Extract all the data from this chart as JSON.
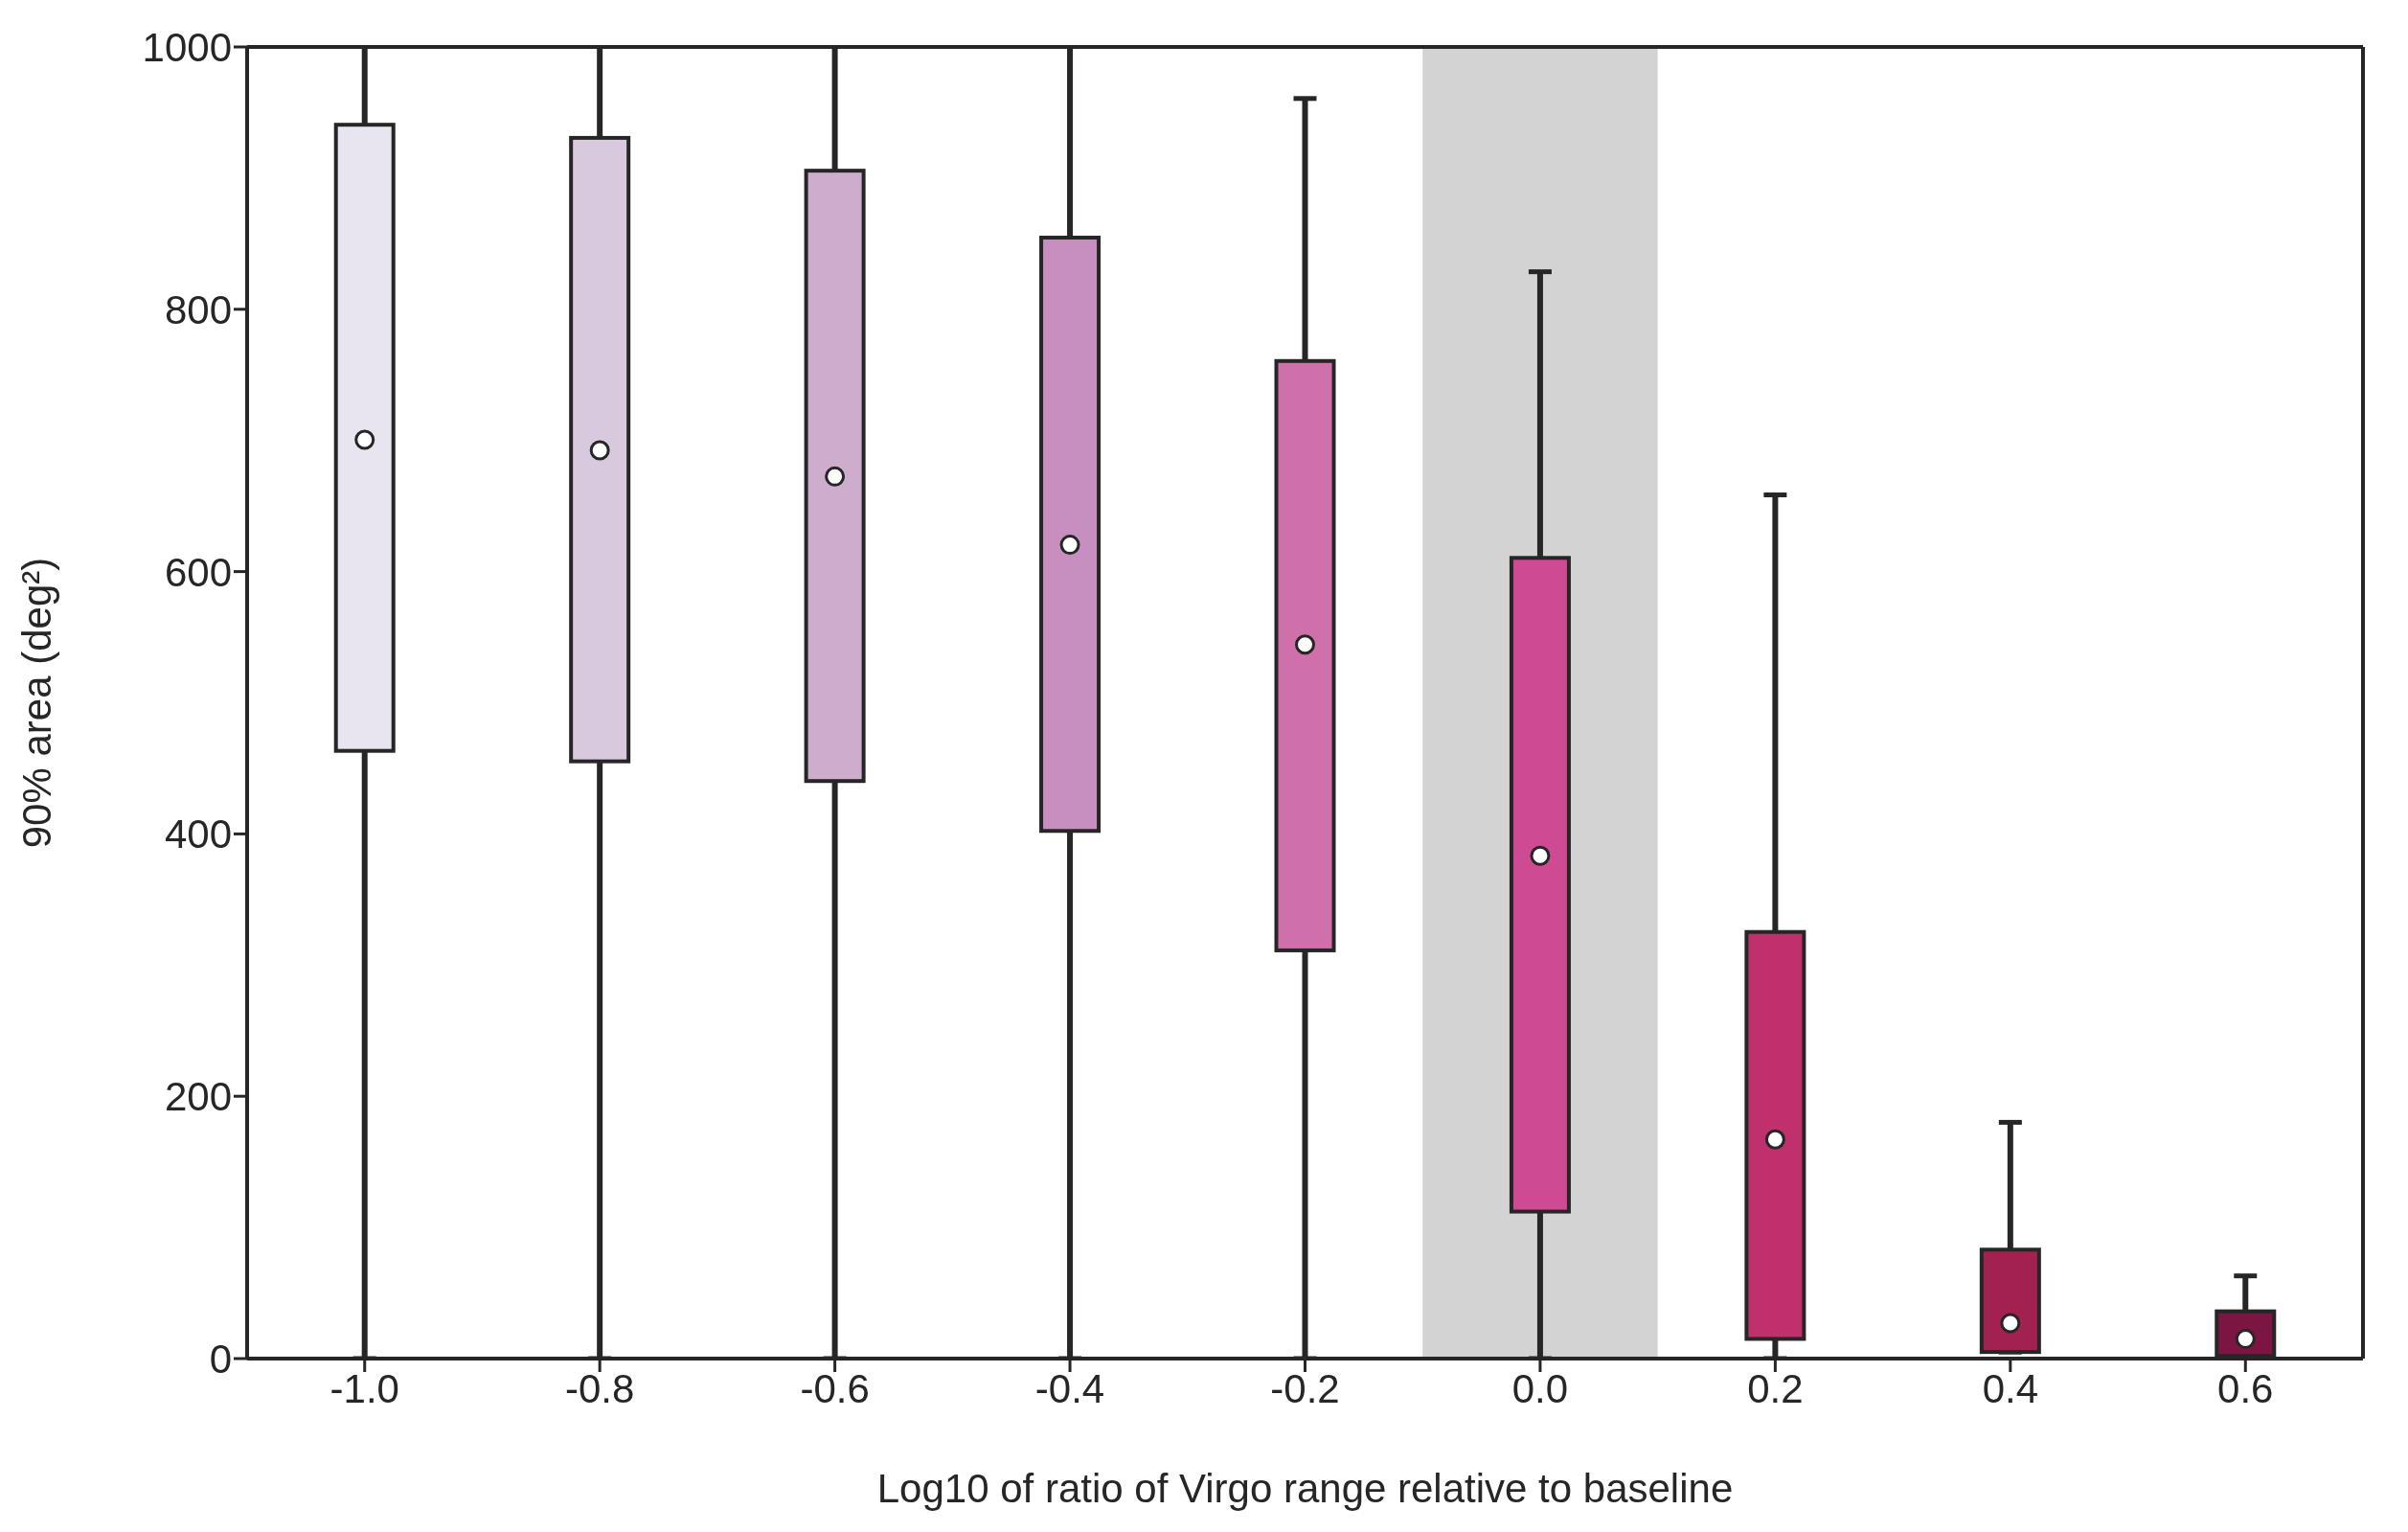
{
  "chart_data": {
    "type": "box",
    "xlabel": "Log10 of ratio of Virgo range relative to baseline",
    "ylabel": "90% area (deg²)",
    "x": [
      -1.0,
      -0.8,
      -0.6,
      -0.4,
      -0.2,
      0.0,
      0.2,
      0.4,
      0.6
    ],
    "xlim": [
      -1.1,
      0.7
    ],
    "xticks": [
      {
        "value": -1.0,
        "label": "-1.0"
      },
      {
        "value": -0.8,
        "label": "-0.8"
      },
      {
        "value": -0.6,
        "label": "-0.6"
      },
      {
        "value": -0.4,
        "label": "-0.4"
      },
      {
        "value": -0.2,
        "label": "-0.2"
      },
      {
        "value": 0.0,
        "label": "0.0"
      },
      {
        "value": 0.2,
        "label": "0.2"
      },
      {
        "value": 0.4,
        "label": "0.4"
      },
      {
        "value": 0.6,
        "label": "0.6"
      }
    ],
    "ylim": [
      0,
      1000
    ],
    "yticks": [
      0,
      200,
      400,
      600,
      800,
      1000
    ],
    "colors": [
      "#e8e4f0",
      "#d9c9df",
      "#ceaccd",
      "#c78fbf",
      "#d070ab",
      "#ce4a93",
      "#c0306c",
      "#a22150",
      "#7c1541"
    ],
    "boxes": [
      {
        "low": 0,
        "q1": 463,
        "median": 700,
        "q3": 940,
        "high": 1000
      },
      {
        "low": 0,
        "q1": 455,
        "median": 692,
        "q3": 930,
        "high": 1000
      },
      {
        "low": 0,
        "q1": 440,
        "median": 672,
        "q3": 905,
        "high": 1000
      },
      {
        "low": 0,
        "q1": 402,
        "median": 620,
        "q3": 854,
        "high": 1000
      },
      {
        "low": 0,
        "q1": 311,
        "median": 544,
        "q3": 760,
        "high": 960
      },
      {
        "low": 0,
        "q1": 112,
        "median": 383,
        "q3": 610,
        "high": 828
      },
      {
        "low": 0,
        "q1": 15,
        "median": 167,
        "q3": 325,
        "high": 658
      },
      {
        "low": 5,
        "q1": 5,
        "median": 27,
        "q3": 83,
        "high": 180
      },
      {
        "low": 2,
        "q1": 2,
        "median": 15,
        "q3": 36,
        "high": 63
      }
    ],
    "bands": [
      {
        "axis": "x",
        "from": -0.1,
        "to": 0.1,
        "color": "#d3d3d3"
      }
    ]
  }
}
